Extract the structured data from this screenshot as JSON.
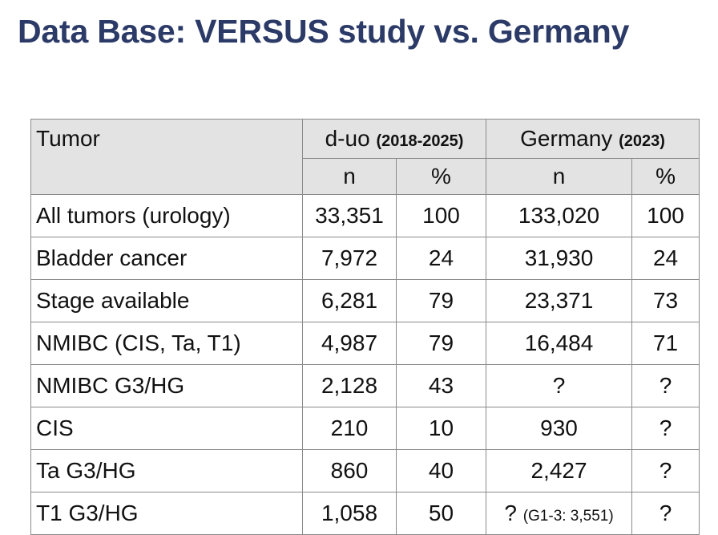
{
  "slide": {
    "title": "Data Base: VERSUS study vs. Germany"
  },
  "table": {
    "header": {
      "tumor": "Tumor",
      "group1_name": "d-uo",
      "group1_period": "(2018-2025)",
      "group2_name": "Germany",
      "group2_period": "(2023)",
      "n_label": "n",
      "pct_label": "%"
    },
    "rows": [
      {
        "label": "All tumors (urology)",
        "duo_n": "33,351",
        "duo_pct": "100",
        "de_n": "133,020",
        "de_note": "",
        "de_pct": "100"
      },
      {
        "label": "Bladder cancer",
        "duo_n": "7,972",
        "duo_pct": "24",
        "de_n": "31,930",
        "de_note": "",
        "de_pct": "24"
      },
      {
        "label": "Stage available",
        "duo_n": "6,281",
        "duo_pct": "79",
        "de_n": "23,371",
        "de_note": "",
        "de_pct": "73"
      },
      {
        "label": "NMIBC (CIS, Ta, T1)",
        "duo_n": "4,987",
        "duo_pct": "79",
        "de_n": "16,484",
        "de_note": "",
        "de_pct": "71"
      },
      {
        "label": "NMIBC G3/HG",
        "duo_n": "2,128",
        "duo_pct": "43",
        "de_n": "?",
        "de_note": "",
        "de_pct": "?"
      },
      {
        "label": "CIS",
        "duo_n": "210",
        "duo_pct": "10",
        "de_n": "930",
        "de_note": "",
        "de_pct": "?"
      },
      {
        "label": "Ta G3/HG",
        "duo_n": "860",
        "duo_pct": "40",
        "de_n": "2,427",
        "de_note": "",
        "de_pct": "?"
      },
      {
        "label": "T1 G3/HG",
        "duo_n": "1,058",
        "duo_pct": "50",
        "de_n": "?",
        "de_note": "(G1-3: 3,551)",
        "de_pct": "?"
      }
    ]
  }
}
